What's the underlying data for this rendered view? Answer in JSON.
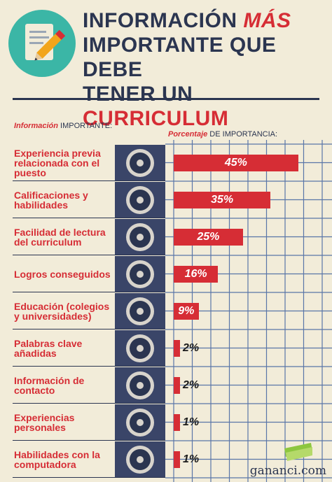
{
  "header": {
    "title_part1": "INFORMACIÓN",
    "title_part2": "MÁS",
    "title_line2": "IMPORTANTE QUE DEBE",
    "title_line3a": "TENER UN",
    "title_line3b": "CURRICULUM"
  },
  "columns": {
    "left_accent": "Información",
    "left_rest": " IMPORTANTE:",
    "right_accent": "Porcentaje",
    "right_rest": " DE IMPORTANCIA:"
  },
  "chart_data": {
    "type": "bar",
    "orientation": "horizontal",
    "title": "",
    "categories": [
      "Experiencia previa relacionada con el puesto",
      "Calificaciones y habilidades",
      "Facilidad de lectura del curriculum",
      "Logros conseguidos",
      "Educación (colegios y universidades)",
      "Palabras clave añadidas",
      "Información de contacto",
      "Experiencias personales",
      "Habilidades con la computadora"
    ],
    "values": [
      45,
      35,
      25,
      16,
      9,
      2,
      2,
      1,
      1
    ],
    "value_labels": [
      "45%",
      "35%",
      "25%",
      "16%",
      "9%",
      "2%",
      "2%",
      "1%",
      "1%"
    ],
    "xlim": [
      0,
      100
    ],
    "grid": true
  },
  "rows": [
    {
      "label": "Experiencia previa relacionada con el puesto",
      "icon": "handshake-icon"
    },
    {
      "label": "Calificaciones y habilidades",
      "icon": "certificate-icon"
    },
    {
      "label": "Facilidad de lectura del curriculum",
      "icon": "clipboard-check-icon"
    },
    {
      "label": "Logros conseguidos",
      "icon": "person-desk-icon"
    },
    {
      "label": "Educación (colegios y universidades)",
      "icon": "graduation-cap-icon"
    },
    {
      "label": "Palabras clave añadidas",
      "icon": "mouse-icon"
    },
    {
      "label": "Información de contacto",
      "icon": "id-card-icon"
    },
    {
      "label": "Experiencias personales",
      "icon": "speech-bubble-icon"
    },
    {
      "label": "Habilidades con la computadora",
      "icon": "laptop-icon"
    }
  ],
  "brand": {
    "name": "gananci.com"
  },
  "colors": {
    "accent": "#d62d35",
    "navy": "#2b3550",
    "teal": "#3bb6a6",
    "background": "#f2ecd9"
  }
}
